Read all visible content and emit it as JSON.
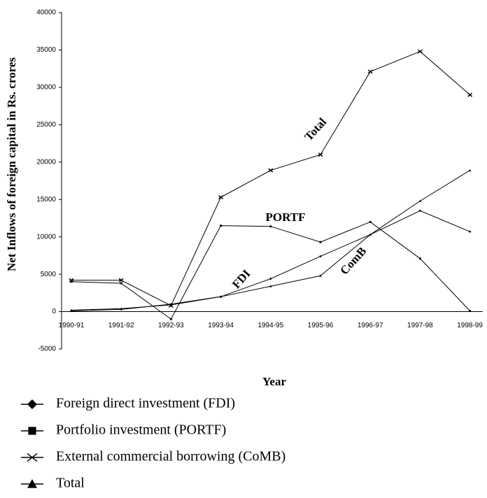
{
  "chart_data": {
    "type": "line",
    "xlabel": "Year",
    "ylabel": "Net Inflows of foreign capital in Rs. crores",
    "categories": [
      "1990-91",
      "1991-92",
      "1992-93",
      "1993-94",
      "1994-95",
      "1995-96",
      "1996-97",
      "1997-98",
      "1998-99"
    ],
    "series": [
      {
        "name": "Foreign direct investment (FDI)",
        "color": "#000000",
        "marker": "diamond",
        "values": [
          100,
          300,
          1000,
          2000,
          4400,
          7400,
          10300,
          13500,
          10700
        ]
      },
      {
        "name": "Portfolio investment (PORTF)",
        "color": "#000000",
        "marker": "square",
        "values": [
          4000,
          3800,
          -1000,
          11500,
          11400,
          9300,
          12000,
          7100,
          100
        ]
      },
      {
        "name": "External commercial borrowing (CoMB)",
        "color": "#000000",
        "marker": "x",
        "values": [
          4200,
          4200,
          800,
          15300,
          18900,
          21000,
          32100,
          34800,
          29000
        ]
      },
      {
        "name": "Total",
        "color": "#000000",
        "marker": "triangle",
        "values": [
          200,
          400,
          900,
          2000,
          3400,
          4800,
          10300,
          14800,
          18900
        ]
      }
    ],
    "annotations": [
      "Total",
      "PORTF",
      "FDI",
      "ComB"
    ],
    "ylim": [
      -5000,
      40000
    ],
    "yticks": [
      -5000,
      0,
      5000,
      10000,
      15000,
      20000,
      25000,
      30000,
      35000,
      40000
    ],
    "grid": false,
    "legend": "bottom"
  }
}
